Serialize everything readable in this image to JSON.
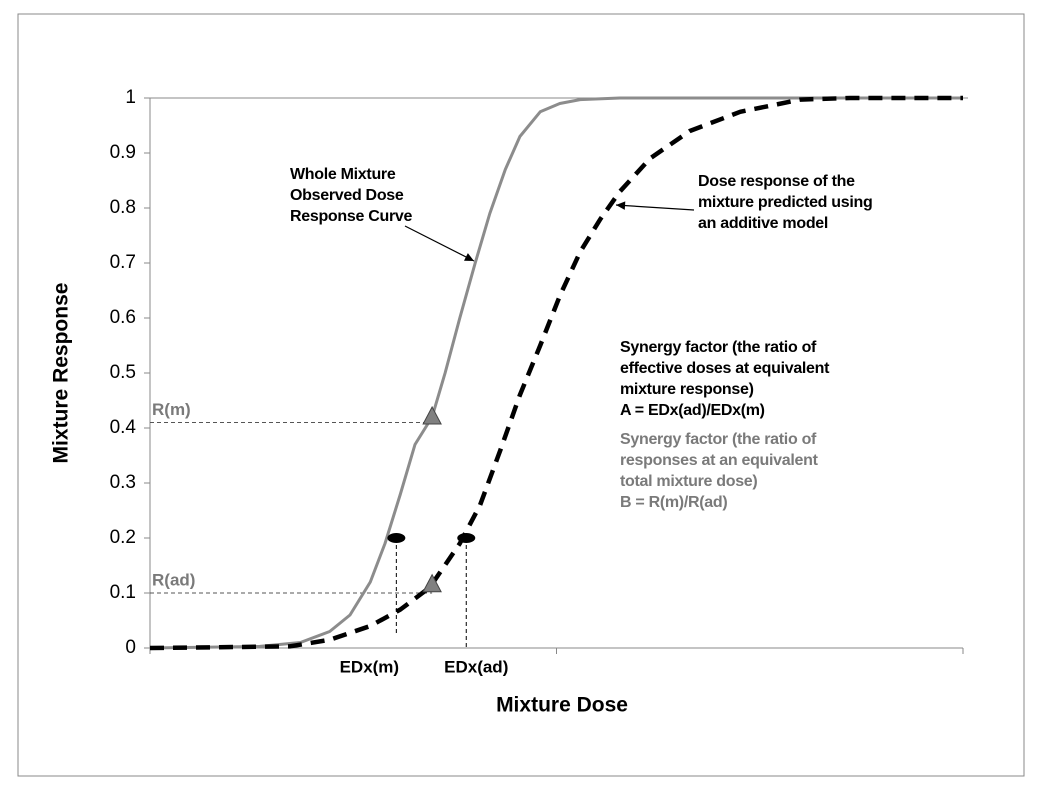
{
  "chart_data": {
    "type": "line",
    "xlabel": "Mixture Dose",
    "ylabel": "Mixture Response",
    "xlim": [
      0,
      100
    ],
    "xticks": [
      0,
      50,
      100
    ],
    "xtick_labels": false,
    "ylim": [
      0,
      1
    ],
    "yticks": [
      0,
      0.1,
      0.2,
      0.3,
      0.4,
      0.5,
      0.6,
      0.7,
      0.8,
      0.9,
      1
    ],
    "grid": false,
    "series": [
      {
        "color": "#8c8c8c",
        "style": "solid",
        "x": [
          0,
          13.5,
          18.5,
          22.1,
          24.6,
          27.1,
          28.9,
          30.8,
          32.6,
          34.7,
          36.3,
          38.1,
          40.0,
          41.8,
          43.7,
          45.5,
          48.0,
          50.4,
          52.9,
          57.8,
          100
        ],
        "values": [
          0,
          0.003,
          0.01,
          0.03,
          0.06,
          0.12,
          0.19,
          0.28,
          0.37,
          0.42,
          0.5,
          0.6,
          0.7,
          0.79,
          0.87,
          0.93,
          0.975,
          0.99,
          0.997,
          1,
          1
        ]
      },
      {
        "color": "#000000",
        "style": "dashed",
        "x": [
          0,
          17.2,
          22.1,
          27.1,
          30.8,
          34.4,
          38.1,
          40.6,
          43.1,
          45.5,
          48.0,
          50.4,
          52.9,
          55.4,
          57.8,
          61.5,
          66.4,
          72.6,
          80.0,
          86.1,
          100
        ],
        "values": [
          0,
          0.003,
          0.015,
          0.04,
          0.07,
          0.11,
          0.19,
          0.26,
          0.36,
          0.46,
          0.55,
          0.64,
          0.72,
          0.78,
          0.83,
          0.89,
          0.94,
          0.975,
          0.997,
          1,
          1
        ]
      }
    ],
    "points": [
      {
        "x": 34.7,
        "y": 0.42,
        "shape": "triangle",
        "color": "#808080"
      },
      {
        "x": 34.7,
        "y": 0.115,
        "shape": "triangle",
        "color": "#808080"
      },
      {
        "x": 30.3,
        "y": 0.2,
        "shape": "ellipse",
        "color": "#000000"
      },
      {
        "x": 38.9,
        "y": 0.2,
        "shape": "ellipse",
        "color": "#000000"
      }
    ],
    "reference_lines": [
      {
        "label": "R(m)",
        "y": 0.41,
        "x_end": 34.7
      },
      {
        "label": "R(ad)",
        "y": 0.1,
        "x_end": 34.7
      },
      {
        "label": "EDx(m)",
        "x": 30.3,
        "y_end": 0.2
      },
      {
        "label": "EDx(ad)",
        "x": 38.9,
        "y_end": 0.2
      }
    ],
    "annotations": [
      {
        "lines": [
          "Whole Mixture",
          "Observed Dose",
          "Response Curve"
        ],
        "color": "#000000"
      },
      {
        "lines": [
          "Dose response of the",
          "mixture predicted using",
          "an additive model"
        ],
        "color": "#000000"
      },
      {
        "lines": [
          "Synergy factor (the ratio of",
          "effective doses at equivalent",
          "mixture response)",
          "A = EDx(ad)/EDx(m)"
        ],
        "color": "#000000"
      },
      {
        "lines": [
          "Synergy factor (the ratio of",
          "responses at an equivalent",
          "total mixture dose)",
          "B = R(m)/R(ad)"
        ],
        "color": "#7a7a7a"
      }
    ]
  }
}
